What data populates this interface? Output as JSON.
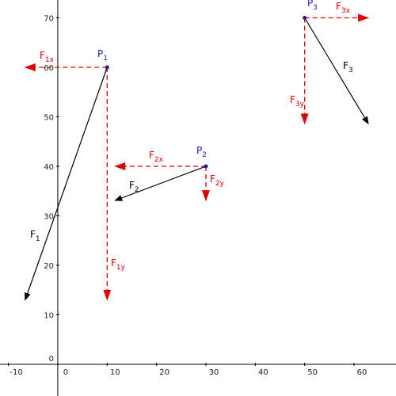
{
  "xlim": [
    -11.7,
    68.5
  ],
  "ylim": [
    -6.4,
    73.6
  ],
  "xticks": [
    -10,
    0,
    10,
    20,
    30,
    40,
    50,
    60
  ],
  "yticks": [
    0,
    10,
    20,
    30,
    40,
    50,
    60,
    70
  ],
  "points": [
    {
      "label": {
        "base": "P",
        "sub": "1"
      },
      "x": 10,
      "y": 60,
      "force": {
        "label": {
          "base": "F",
          "sub": "1"
        },
        "x": -6.6,
        "y": 13
      },
      "fx": {
        "base": "F",
        "sub": "1x"
      },
      "fy": {
        "base": "F",
        "sub": "1y"
      }
    },
    {
      "label": {
        "base": "P",
        "sub": "2"
      },
      "x": 30,
      "y": 40,
      "force": {
        "label": {
          "base": "F",
          "sub": "2"
        },
        "x": 11.6,
        "y": 33.1
      },
      "fx": {
        "base": "F",
        "sub": "2x"
      },
      "fy": {
        "base": "F",
        "sub": "2y"
      }
    },
    {
      "label": {
        "base": "P",
        "sub": "3"
      },
      "x": 50,
      "y": 70,
      "force": {
        "label": {
          "base": "F",
          "sub": "3"
        },
        "x": 62.9,
        "y": 48.6
      },
      "fx": {
        "base": "F",
        "sub": "3x"
      },
      "fy": {
        "base": "F",
        "sub": "3y"
      }
    }
  ]
}
